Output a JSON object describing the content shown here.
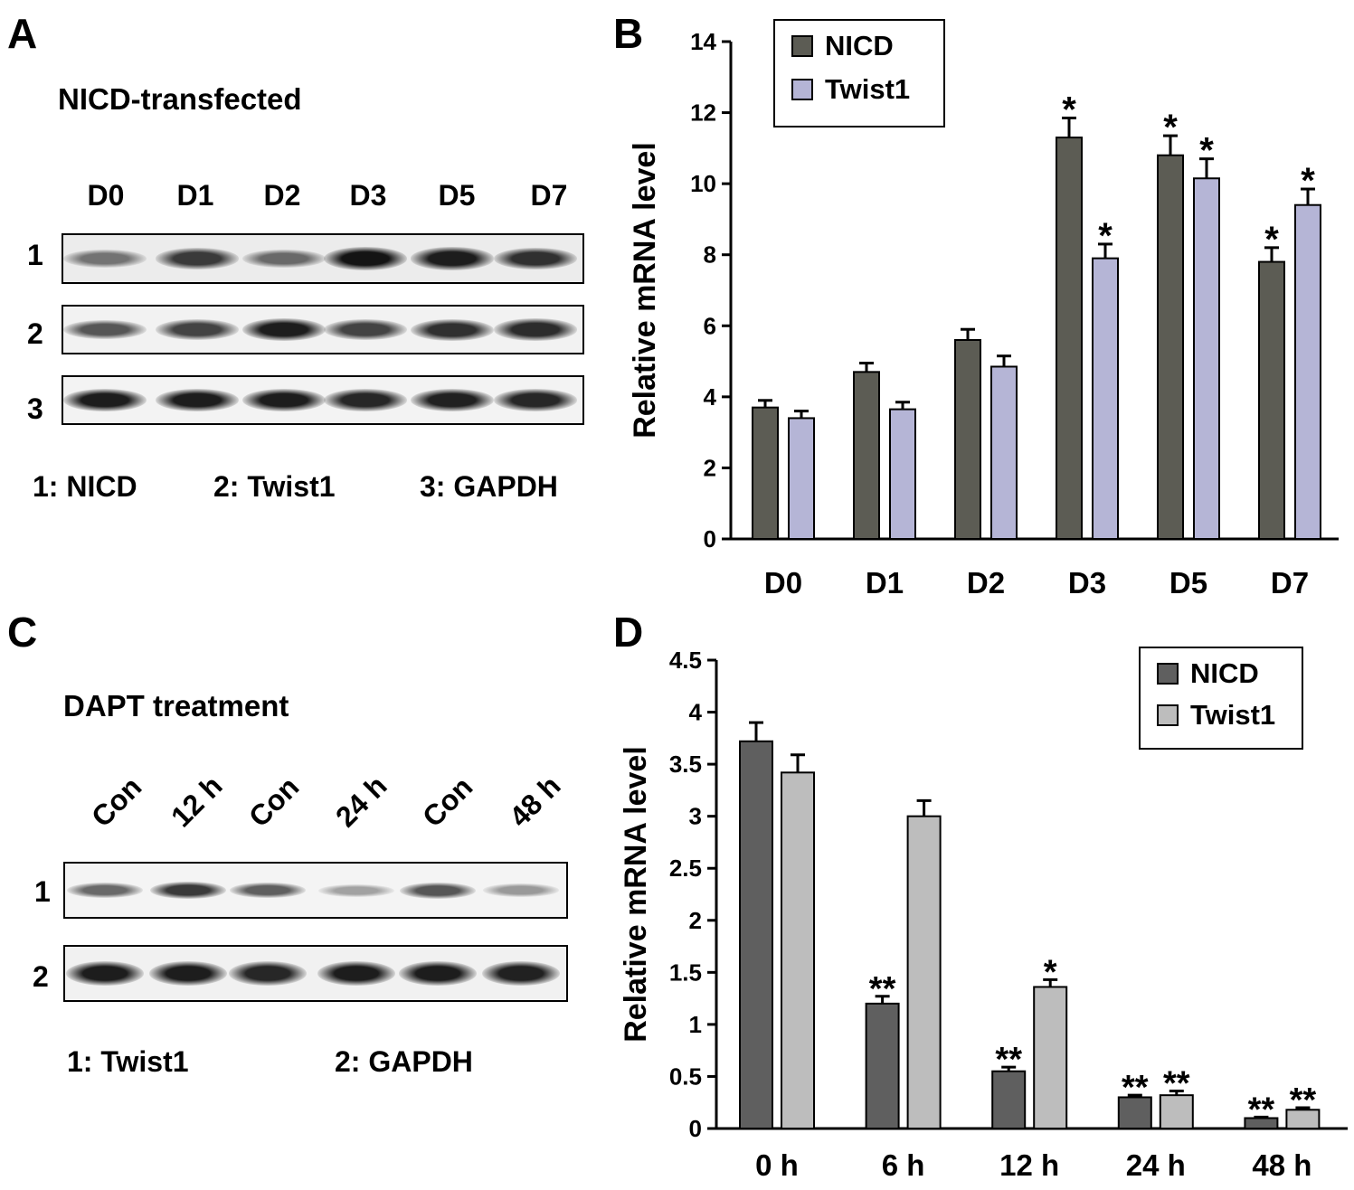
{
  "panelA": {
    "letter": "A",
    "title": "NICD-transfected",
    "lanes": [
      "D0",
      "D1",
      "D2",
      "D3",
      "D5",
      "D7"
    ],
    "rows": [
      {
        "label": "1",
        "intensity": [
          0.45,
          0.75,
          0.5,
          0.95,
          0.9,
          0.8
        ]
      },
      {
        "label": "2",
        "intensity": [
          0.6,
          0.7,
          0.9,
          0.7,
          0.8,
          0.82
        ]
      },
      {
        "label": "3",
        "intensity": [
          0.9,
          0.9,
          0.9,
          0.85,
          0.88,
          0.85
        ]
      }
    ],
    "key": [
      "1: NICD",
      "2: Twist1",
      "3: GAPDH"
    ]
  },
  "panelC": {
    "letter": "C",
    "title": "DAPT treatment",
    "lanes": [
      "Con",
      "12 h",
      "Con",
      "24 h",
      "Con",
      "48 h"
    ],
    "rows": [
      {
        "label": "1",
        "intensity": [
          0.5,
          0.75,
          0.55,
          0.2,
          0.6,
          0.25
        ]
      },
      {
        "label": "2",
        "intensity": [
          0.9,
          0.9,
          0.85,
          0.9,
          0.9,
          0.88
        ]
      }
    ],
    "key": [
      "1: Twist1",
      "2: GAPDH"
    ]
  },
  "chart_data": [
    {
      "panel": "B",
      "type": "bar",
      "ylabel": "Relative mRNA level",
      "xlabel": "",
      "ylim": [
        0,
        14
      ],
      "yticks": [
        "0",
        "2",
        "4",
        "6",
        "8",
        "10",
        "12",
        "14"
      ],
      "categories": [
        "D0",
        "D1",
        "D2",
        "D3",
        "D5",
        "D7"
      ],
      "legend_position": "top-left",
      "series": [
        {
          "name": "NICD",
          "color": "#5c5c54",
          "values": [
            3.7,
            4.7,
            5.6,
            11.3,
            10.8,
            7.8
          ],
          "errors": [
            0.2,
            0.25,
            0.3,
            0.55,
            0.55,
            0.4
          ],
          "markers": [
            "",
            "",
            "",
            "*",
            "*",
            "*"
          ]
        },
        {
          "name": "Twist1",
          "color": "#b5b5d6",
          "values": [
            3.4,
            3.65,
            4.85,
            7.9,
            10.15,
            9.4
          ],
          "errors": [
            0.2,
            0.2,
            0.3,
            0.4,
            0.55,
            0.45
          ],
          "markers": [
            "",
            "",
            "",
            "*",
            "*",
            "*"
          ]
        }
      ]
    },
    {
      "panel": "D",
      "type": "bar",
      "ylabel": "Relative mRNA level",
      "xlabel": "",
      "ylim": [
        0,
        4.5
      ],
      "yticks": [
        "0",
        "0.5",
        "1",
        "1.5",
        "2",
        "2.5",
        "3",
        "3.5",
        "4",
        "4.5"
      ],
      "categories": [
        "0 h",
        "6 h",
        "12 h",
        "24 h",
        "48 h"
      ],
      "legend_position": "top-right",
      "series": [
        {
          "name": "NICD",
          "color": "#5f5f5f",
          "values": [
            3.72,
            1.2,
            0.55,
            0.3,
            0.1
          ],
          "errors": [
            0.18,
            0.07,
            0.04,
            0.02,
            0.01
          ],
          "markers": [
            "",
            "**",
            "**",
            "**",
            "**"
          ]
        },
        {
          "name": "Twist1",
          "color": "#bdbdbd",
          "values": [
            3.42,
            3.0,
            1.36,
            0.32,
            0.18
          ],
          "errors": [
            0.17,
            0.15,
            0.07,
            0.04,
            0.02
          ],
          "markers": [
            "",
            "",
            "*",
            "**",
            "**"
          ]
        }
      ]
    }
  ]
}
